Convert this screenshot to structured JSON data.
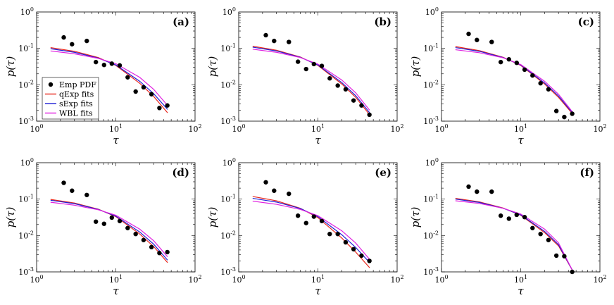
{
  "chart_data": [
    {
      "panel": "(a)",
      "type": "scatter+line",
      "xlabel": "τ",
      "ylabel": "p(τ)",
      "xscale": "log",
      "yscale": "log",
      "xlim": [
        1,
        100
      ],
      "ylim": [
        0.001,
        1
      ],
      "xticks": [
        "10^0",
        "10^1",
        "10^2"
      ],
      "yticks": [
        "10^-3",
        "10^-2",
        "10^-1",
        "10^0"
      ],
      "emp_pdf": {
        "x": [
          2.2,
          2.8,
          4.3,
          5.6,
          7.1,
          8.9,
          11.2,
          14.1,
          17.8,
          22.4,
          28.2,
          35.5,
          44.7
        ],
        "y": [
          0.2,
          0.13,
          0.16,
          0.042,
          0.035,
          0.038,
          0.034,
          0.016,
          0.0065,
          0.0085,
          0.0055,
          0.0023,
          0.0027
        ]
      },
      "fits": [
        {
          "name": "qExp fits",
          "x": [
            1.5,
            3,
            6,
            10,
            20,
            30,
            45
          ],
          "y": [
            0.105,
            0.083,
            0.056,
            0.034,
            0.011,
            0.0048,
            0.0017
          ]
        },
        {
          "name": "sExp fits",
          "x": [
            1.5,
            3,
            6,
            10,
            20,
            30,
            45
          ],
          "y": [
            0.098,
            0.078,
            0.054,
            0.035,
            0.0125,
            0.0057,
            0.0021
          ]
        },
        {
          "name": "WBL fits",
          "x": [
            1.5,
            3,
            6,
            10,
            20,
            30,
            45
          ],
          "y": [
            0.085,
            0.071,
            0.053,
            0.038,
            0.016,
            0.0075,
            0.0027
          ]
        }
      ],
      "legend": {
        "location": "bottom-left",
        "entries": [
          "Emp PDF",
          "qExp fits",
          "sExp fits",
          "WBL fits"
        ]
      }
    },
    {
      "panel": "(b)",
      "type": "scatter+line",
      "xlabel": "τ",
      "ylabel": "p(τ)",
      "xscale": "log",
      "yscale": "log",
      "xlim": [
        1,
        100
      ],
      "ylim": [
        0.001,
        1
      ],
      "xticks": [
        "10^0",
        "10^1",
        "10^2"
      ],
      "yticks": [
        "10^-3",
        "10^-2",
        "10^-1",
        "10^0"
      ],
      "emp_pdf": {
        "x": [
          2.2,
          2.8,
          4.3,
          5.6,
          7.1,
          8.9,
          11.2,
          14.1,
          17.8,
          22.4,
          28.2,
          35.5,
          44.7
        ],
        "y": [
          0.23,
          0.16,
          0.15,
          0.043,
          0.027,
          0.037,
          0.033,
          0.015,
          0.0095,
          0.0075,
          0.0037,
          0.0027,
          0.0015
        ]
      },
      "fits": [
        {
          "name": "qExp fits",
          "x": [
            1.5,
            3,
            6,
            10,
            20,
            30,
            45
          ],
          "y": [
            0.115,
            0.089,
            0.058,
            0.034,
            0.0105,
            0.0045,
            0.0015
          ]
        },
        {
          "name": "sExp fits",
          "x": [
            1.5,
            3,
            6,
            10,
            20,
            30,
            45
          ],
          "y": [
            0.108,
            0.085,
            0.057,
            0.035,
            0.0115,
            0.005,
            0.0017
          ]
        },
        {
          "name": "WBL fits",
          "x": [
            1.5,
            3,
            6,
            10,
            20,
            30,
            45
          ],
          "y": [
            0.095,
            0.078,
            0.056,
            0.037,
            0.0135,
            0.006,
            0.002
          ]
        }
      ]
    },
    {
      "panel": "(c)",
      "type": "scatter+line",
      "xlabel": "τ",
      "ylabel": "p(τ)",
      "xscale": "log",
      "yscale": "log",
      "xlim": [
        1,
        100
      ],
      "ylim": [
        0.001,
        1
      ],
      "xticks": [
        "10^0",
        "10^1",
        "10^2"
      ],
      "yticks": [
        "10^-3",
        "10^-2",
        "10^-1",
        "10^0"
      ],
      "emp_pdf": {
        "x": [
          2.2,
          2.8,
          4.3,
          5.6,
          7.1,
          8.9,
          11.2,
          14.1,
          17.8,
          22.4,
          28.2,
          35.5,
          44.7
        ],
        "y": [
          0.25,
          0.17,
          0.15,
          0.042,
          0.05,
          0.04,
          0.026,
          0.018,
          0.011,
          0.0075,
          0.0019,
          0.0013,
          0.0016
        ]
      },
      "fits": [
        {
          "name": "qExp fits",
          "x": [
            1.5,
            3,
            6,
            10,
            20,
            30,
            45
          ],
          "y": [
            0.112,
            0.087,
            0.057,
            0.034,
            0.0105,
            0.0045,
            0.0016
          ]
        },
        {
          "name": "sExp fits",
          "x": [
            1.5,
            3,
            6,
            10,
            20,
            30,
            45
          ],
          "y": [
            0.105,
            0.083,
            0.056,
            0.035,
            0.0112,
            0.0049,
            0.0017
          ]
        },
        {
          "name": "WBL fits",
          "x": [
            1.5,
            3,
            6,
            10,
            20,
            30,
            45
          ],
          "y": [
            0.092,
            0.076,
            0.055,
            0.036,
            0.0125,
            0.0055,
            0.0018
          ]
        }
      ]
    },
    {
      "panel": "(d)",
      "type": "scatter+line",
      "xlabel": "τ",
      "ylabel": "p(τ)",
      "xscale": "log",
      "yscale": "log",
      "xlim": [
        1,
        100
      ],
      "ylim": [
        0.001,
        1
      ],
      "xticks": [
        "10^0",
        "10^1",
        "10^2"
      ],
      "yticks": [
        "10^-3",
        "10^-2",
        "10^-1",
        "10^0"
      ],
      "emp_pdf": {
        "x": [
          2.2,
          2.8,
          4.3,
          5.6,
          7.1,
          8.9,
          11.2,
          14.1,
          17.8,
          22.4,
          28.2,
          35.5,
          44.7
        ],
        "y": [
          0.28,
          0.17,
          0.13,
          0.024,
          0.021,
          0.031,
          0.025,
          0.016,
          0.011,
          0.0075,
          0.0048,
          0.0033,
          0.0035
        ]
      },
      "fits": [
        {
          "name": "qExp fits",
          "x": [
            1.5,
            3,
            6,
            10,
            20,
            30,
            45
          ],
          "y": [
            0.098,
            0.078,
            0.053,
            0.033,
            0.011,
            0.005,
            0.0018
          ]
        },
        {
          "name": "sExp fits",
          "x": [
            1.5,
            3,
            6,
            10,
            20,
            30,
            45
          ],
          "y": [
            0.093,
            0.075,
            0.052,
            0.034,
            0.0125,
            0.0058,
            0.0021
          ]
        },
        {
          "name": "WBL fits",
          "x": [
            1.5,
            3,
            6,
            10,
            20,
            30,
            45
          ],
          "y": [
            0.082,
            0.068,
            0.051,
            0.036,
            0.015,
            0.0072,
            0.0026
          ]
        }
      ]
    },
    {
      "panel": "(e)",
      "type": "scatter+line",
      "xlabel": "τ",
      "ylabel": "p(τ)",
      "xscale": "log",
      "yscale": "log",
      "xlim": [
        1,
        100
      ],
      "ylim": [
        0.001,
        1
      ],
      "xticks": [
        "10^0",
        "10^1",
        "10^2"
      ],
      "yticks": [
        "10^-3",
        "10^-2",
        "10^-1",
        "10^0"
      ],
      "emp_pdf": {
        "x": [
          2.2,
          2.8,
          4.3,
          5.6,
          7.1,
          8.9,
          11.2,
          14.1,
          17.8,
          22.4,
          28.2,
          35.5,
          44.7
        ],
        "y": [
          0.29,
          0.17,
          0.14,
          0.035,
          0.022,
          0.033,
          0.025,
          0.011,
          0.011,
          0.0065,
          0.0042,
          0.0028,
          0.002
        ]
      },
      "fits": [
        {
          "name": "qExp fits",
          "x": [
            1.5,
            3,
            6,
            10,
            20,
            30,
            45
          ],
          "y": [
            0.118,
            0.09,
            0.056,
            0.031,
            0.0085,
            0.0035,
            0.0013
          ]
        },
        {
          "name": "sExp fits",
          "x": [
            1.5,
            3,
            6,
            10,
            20,
            30,
            45
          ],
          "y": [
            0.105,
            0.083,
            0.055,
            0.033,
            0.0105,
            0.0047,
            0.0018
          ]
        },
        {
          "name": "WBL fits",
          "x": [
            1.5,
            3,
            6,
            10,
            20,
            30,
            45
          ],
          "y": [
            0.088,
            0.072,
            0.052,
            0.035,
            0.0135,
            0.0062,
            0.0022
          ]
        }
      ]
    },
    {
      "panel": "(f)",
      "type": "scatter+line",
      "xlabel": "τ",
      "ylabel": "p(τ)",
      "xscale": "log",
      "yscale": "log",
      "xlim": [
        1,
        100
      ],
      "ylim": [
        0.001,
        1
      ],
      "xticks": [
        "10^0",
        "10^1",
        "10^2"
      ],
      "yticks": [
        "10^-3",
        "10^-2",
        "10^-1",
        "10^0"
      ],
      "emp_pdf": {
        "x": [
          2.2,
          2.8,
          4.3,
          5.6,
          7.1,
          8.9,
          11.2,
          14.1,
          17.8,
          22.4,
          28.2,
          35.5,
          44.7
        ],
        "y": [
          0.22,
          0.16,
          0.16,
          0.035,
          0.029,
          0.037,
          0.032,
          0.016,
          0.011,
          0.0075,
          0.0028,
          0.0027,
          0.001
        ]
      },
      "fits": [
        {
          "name": "qExp fits",
          "x": [
            1.5,
            3,
            6,
            10,
            20,
            30,
            45
          ],
          "y": [
            0.105,
            0.084,
            0.057,
            0.036,
            0.012,
            0.0052,
            0.0011
          ]
        },
        {
          "name": "sExp fits",
          "x": [
            1.5,
            3,
            6,
            10,
            20,
            30,
            45
          ],
          "y": [
            0.1,
            0.081,
            0.056,
            0.037,
            0.013,
            0.0056,
            0.0011
          ]
        },
        {
          "name": "WBL fits",
          "x": [
            1.5,
            3,
            6,
            10,
            20,
            30,
            45
          ],
          "y": [
            0.09,
            0.076,
            0.056,
            0.039,
            0.015,
            0.0063,
            0.0011
          ]
        }
      ]
    }
  ],
  "series_colors": {
    "emp": "#000000",
    "qExp": "#e8261c",
    "sExp": "#1f1fd6",
    "WBL": "#e020e0"
  }
}
